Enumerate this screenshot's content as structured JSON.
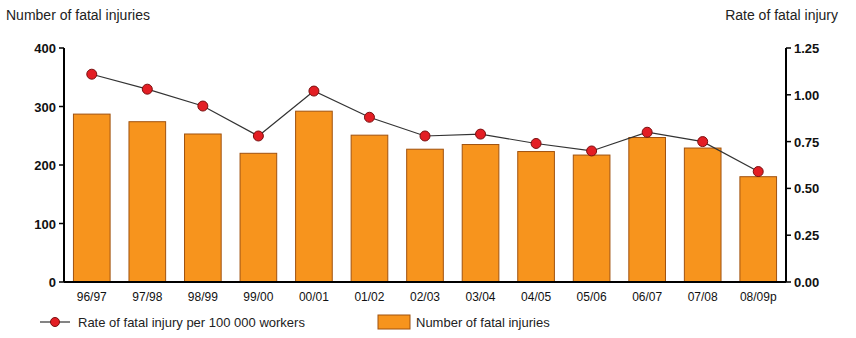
{
  "chart_data": {
    "type": "bar",
    "y_label": "Number of fatal injuries",
    "y2_label": "Rate of fatal injury",
    "categories": [
      "96/97",
      "97/98",
      "98/99",
      "99/00",
      "00/01",
      "01/02",
      "02/03",
      "03/04",
      "04/05",
      "05/06",
      "06/07",
      "07/08",
      "08/09p"
    ],
    "series": [
      {
        "name": "Rate of fatal injury per 100 000 workers",
        "type": "line",
        "axis": "y2",
        "color": "#e31e24",
        "marker": "circle",
        "line_style": "solid",
        "values": [
          1.11,
          1.03,
          0.94,
          0.78,
          1.02,
          0.88,
          0.78,
          0.79,
          0.74,
          0.7,
          0.8,
          0.75,
          0.59
        ]
      },
      {
        "name": "Number of fatal injuries",
        "type": "bar",
        "color": "#f7941d",
        "values": [
          287,
          274,
          253,
          220,
          292,
          251,
          227,
          235,
          223,
          217,
          247,
          229,
          180
        ]
      }
    ],
    "ylim": [
      0,
      400
    ],
    "yticks": [
      0,
      100,
      200,
      300,
      400
    ],
    "y2lim": [
      0,
      1.25
    ],
    "y2ticks": [
      {
        "value": 0,
        "label": "0.00"
      },
      {
        "value": 0.25,
        "label": "0.25"
      },
      {
        "value": 0.5,
        "label": "0.50"
      },
      {
        "value": 0.75,
        "label": "0.75"
      },
      {
        "value": 1,
        "label": "1.00"
      },
      {
        "value": 1.25,
        "label": "1.25"
      }
    ],
    "grid": false,
    "legend": "bottom"
  }
}
